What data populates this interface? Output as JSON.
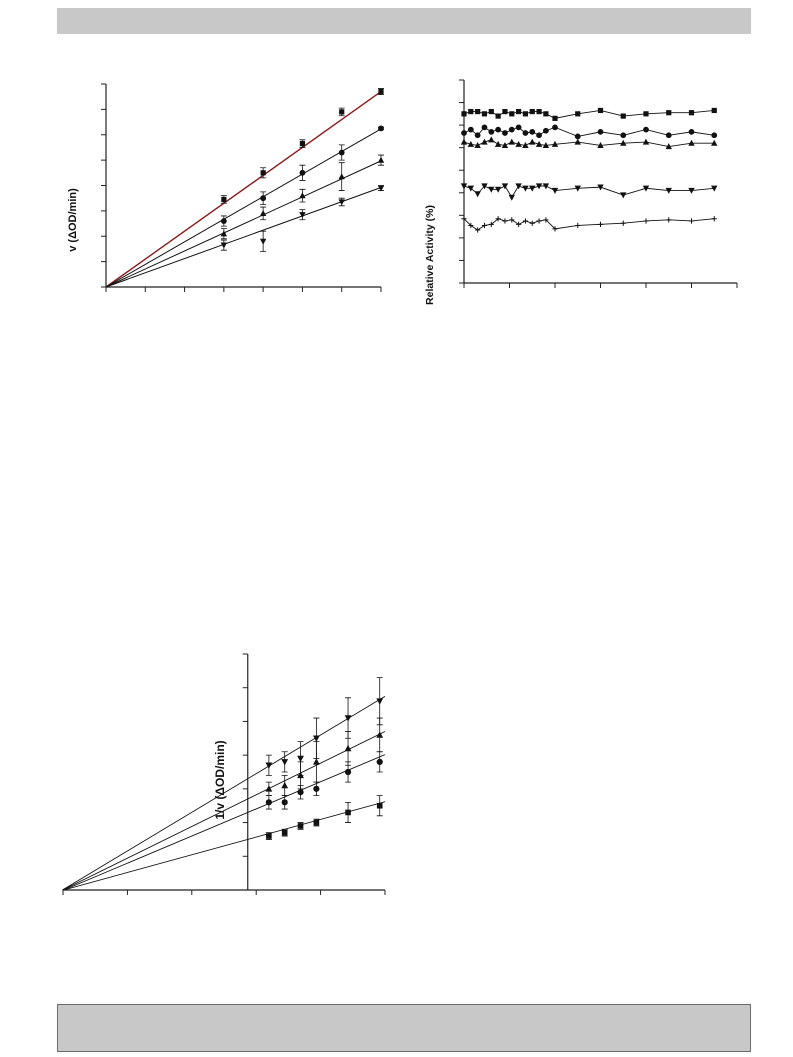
{
  "colors": {
    "axis": "#222222",
    "series": "#111111",
    "highlight_line": "#8b1a1a",
    "panel_bar": "#c8c8c8"
  },
  "chart_data": [
    {
      "id": "velocity",
      "type": "line",
      "title": "",
      "xlabel": "",
      "ylabel": "v (ΔOD/min)",
      "grid": false,
      "xlim": [
        0,
        7
      ],
      "ylim": [
        0,
        8
      ],
      "x_tick_count": 8,
      "y_tick_count": 9,
      "series": [
        {
          "marker": "square",
          "x": [
            3,
            4,
            5,
            6,
            7
          ],
          "y": [
            3.45,
            4.5,
            5.65,
            6.9,
            7.7
          ],
          "err": [
            0.15,
            0.2,
            0.15,
            0.15,
            0.12
          ],
          "fit_slope": 1.1
        },
        {
          "marker": "circle",
          "x": [
            3,
            4,
            5,
            6,
            7
          ],
          "y": [
            2.6,
            3.5,
            4.5,
            5.3,
            6.25
          ],
          "err": [
            0.2,
            0.25,
            0.3,
            0.3,
            0.05
          ],
          "fit_slope": 0.89
        },
        {
          "marker": "triangle-up",
          "x": [
            3,
            4,
            5,
            6,
            7
          ],
          "y": [
            2.1,
            2.9,
            3.6,
            4.35,
            5.0
          ],
          "err": [
            0.2,
            0.25,
            0.25,
            0.55,
            0.2
          ],
          "fit_slope": 0.71
        },
        {
          "marker": "triangle-down",
          "x": [
            3,
            4,
            5,
            6,
            7
          ],
          "y": [
            1.65,
            1.8,
            2.85,
            3.35,
            3.9
          ],
          "err": [
            0.2,
            0.4,
            0.2,
            0.15,
            0.1
          ],
          "fit_slope": 0.56
        }
      ]
    },
    {
      "id": "relative_activity",
      "type": "line",
      "title": "",
      "xlabel": "",
      "ylabel": "Relative Activity (%)",
      "grid": false,
      "xlim": [
        0,
        60
      ],
      "ylim": [
        0,
        180
      ],
      "x_tick_count": 7,
      "y_tick_count": 10,
      "series": [
        {
          "marker": "square",
          "x": [
            0,
            1.5,
            3,
            4.5,
            6,
            7.5,
            9,
            10.5,
            12,
            13.5,
            15,
            16.5,
            18,
            20,
            25,
            30,
            35,
            40,
            45,
            50,
            55
          ],
          "y": [
            150,
            152,
            152,
            150,
            152,
            148,
            152,
            150,
            152,
            150,
            152,
            152,
            150,
            146,
            150,
            153,
            148,
            150,
            151,
            151,
            153
          ]
        },
        {
          "marker": "circle",
          "x": [
            0,
            1.5,
            3,
            4.5,
            6,
            7.5,
            9,
            10.5,
            12,
            13.5,
            15,
            16.5,
            18,
            20,
            25,
            30,
            35,
            40,
            45,
            50,
            55
          ],
          "y": [
            133,
            136,
            131,
            138,
            134,
            136,
            133,
            136,
            138,
            133,
            134,
            131,
            135,
            138,
            130,
            134,
            131,
            136,
            131,
            134,
            131
          ]
        },
        {
          "marker": "triangle-up",
          "x": [
            0,
            1.5,
            3,
            4.5,
            6,
            7.5,
            9,
            10.5,
            12,
            13.5,
            15,
            16.5,
            18,
            20,
            25,
            30,
            35,
            40,
            45,
            50,
            55
          ],
          "y": [
            125,
            123,
            122,
            125,
            127,
            123,
            122,
            125,
            123,
            122,
            125,
            123,
            122,
            123,
            125,
            122,
            124,
            125,
            121,
            124,
            124
          ]
        },
        {
          "marker": "triangle-down",
          "x": [
            0,
            1.5,
            3,
            4.5,
            6,
            7.5,
            9,
            10.5,
            12,
            13.5,
            15,
            16.5,
            18,
            20,
            25,
            30,
            35,
            40,
            45,
            50,
            55
          ],
          "y": [
            86,
            84,
            79,
            86,
            83,
            83,
            86,
            76,
            86,
            84,
            84,
            86,
            86,
            82,
            84,
            85,
            78,
            84,
            82,
            82,
            84
          ]
        },
        {
          "marker": "plus",
          "x": [
            0,
            1.5,
            3,
            4.5,
            6,
            7.5,
            9,
            10.5,
            12,
            13.5,
            15,
            16.5,
            18,
            20,
            25,
            30,
            35,
            40,
            45,
            50,
            55
          ],
          "y": [
            57,
            51,
            47,
            51,
            52,
            57,
            55,
            56,
            52,
            55,
            53,
            55,
            56,
            48,
            51,
            52,
            53,
            55,
            56,
            55,
            57
          ]
        }
      ]
    },
    {
      "id": "double_reciprocal",
      "type": "line",
      "title": "",
      "xlabel": "",
      "ylabel": "1/v (ΔOD/min)",
      "grid": false,
      "xlim": [
        -3.5,
        2.6
      ],
      "ylim": [
        0,
        7
      ],
      "x_tick_count": 6,
      "y_tick_count": 8,
      "series": [
        {
          "marker": "triangle-down",
          "x": [
            0.4,
            0.7,
            1.0,
            1.3,
            1.9,
            2.5
          ],
          "y": [
            3.7,
            3.8,
            3.9,
            4.5,
            5.1,
            5.6
          ],
          "err": [
            0.3,
            0.3,
            0.5,
            0.6,
            0.6,
            0.7
          ],
          "fit_intercept": 3.3,
          "fit_slope": 0.94
        },
        {
          "marker": "triangle-up",
          "x": [
            0.4,
            0.7,
            1.0,
            1.3,
            1.9,
            2.5
          ],
          "y": [
            3.0,
            3.1,
            3.4,
            3.8,
            4.2,
            4.6
          ],
          "err": [
            0.2,
            0.3,
            0.4,
            0.6,
            0.5,
            0.5
          ],
          "fit_intercept": 2.7,
          "fit_slope": 0.77
        },
        {
          "marker": "circle",
          "x": [
            0.4,
            0.7,
            1.0,
            1.3,
            1.9,
            2.5
          ],
          "y": [
            2.6,
            2.6,
            2.9,
            3.0,
            3.5,
            3.8
          ],
          "err": [
            0.2,
            0.2,
            0.2,
            0.2,
            0.3,
            0.3
          ],
          "fit_intercept": 2.3,
          "fit_slope": 0.66
        },
        {
          "marker": "square",
          "x": [
            0.4,
            0.7,
            1.0,
            1.3,
            1.9,
            2.5
          ],
          "y": [
            1.6,
            1.7,
            1.9,
            2.0,
            2.3,
            2.5
          ],
          "err": [
            0.1,
            0.1,
            0.1,
            0.1,
            0.3,
            0.3
          ],
          "fit_intercept": 1.5,
          "fit_slope": 0.43
        }
      ]
    }
  ]
}
